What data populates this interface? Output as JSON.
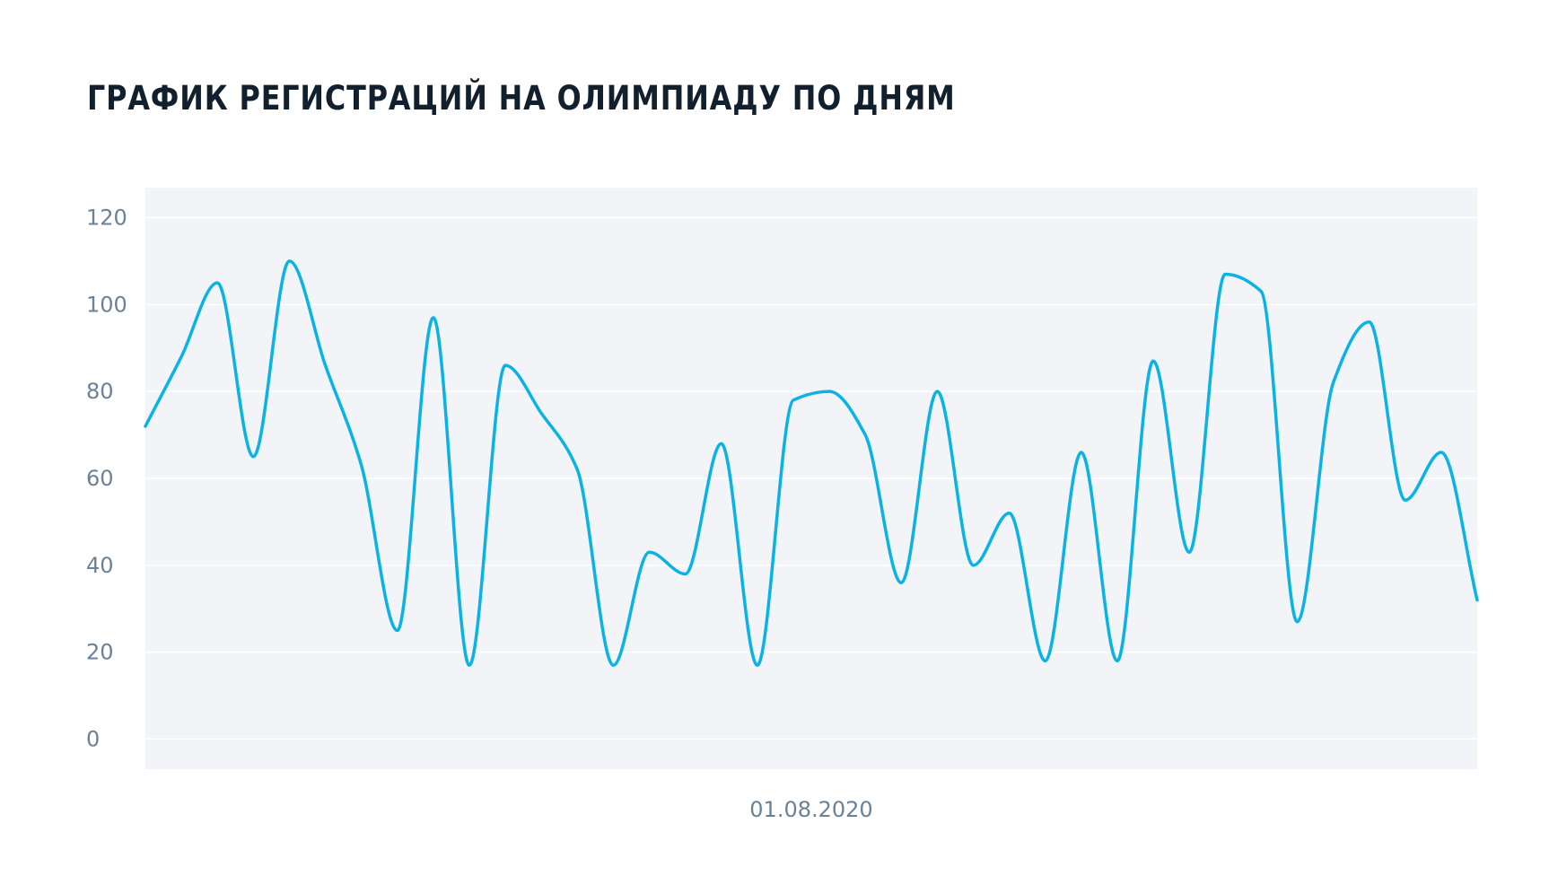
{
  "chart_data": {
    "type": "line",
    "title": "ГРАФИК РЕГИСТРАЦИЙ НА ОЛИМПИАДУ ПО ДНЯМ",
    "x_tick_labels": [
      "01.08.2020"
    ],
    "ylim": [
      0,
      120
    ],
    "y_ticks": [
      0,
      20,
      40,
      60,
      80,
      100,
      120
    ],
    "grid": true,
    "legend": "none",
    "colors": {
      "line": "#0bb2e4",
      "plot_background": "#f2f4f7",
      "grid": "#ffffff",
      "title": "#12202e",
      "tick": "#6b8295"
    },
    "series": [
      {
        "values": [
          72,
          88,
          105,
          65,
          110,
          86,
          63,
          25,
          97,
          17,
          86,
          75,
          62,
          17,
          43,
          38,
          68,
          17,
          78,
          80,
          70,
          36,
          80,
          40,
          52,
          18,
          66,
          18,
          87,
          43,
          107,
          103,
          27,
          82,
          96,
          55,
          66,
          32
        ]
      }
    ]
  }
}
